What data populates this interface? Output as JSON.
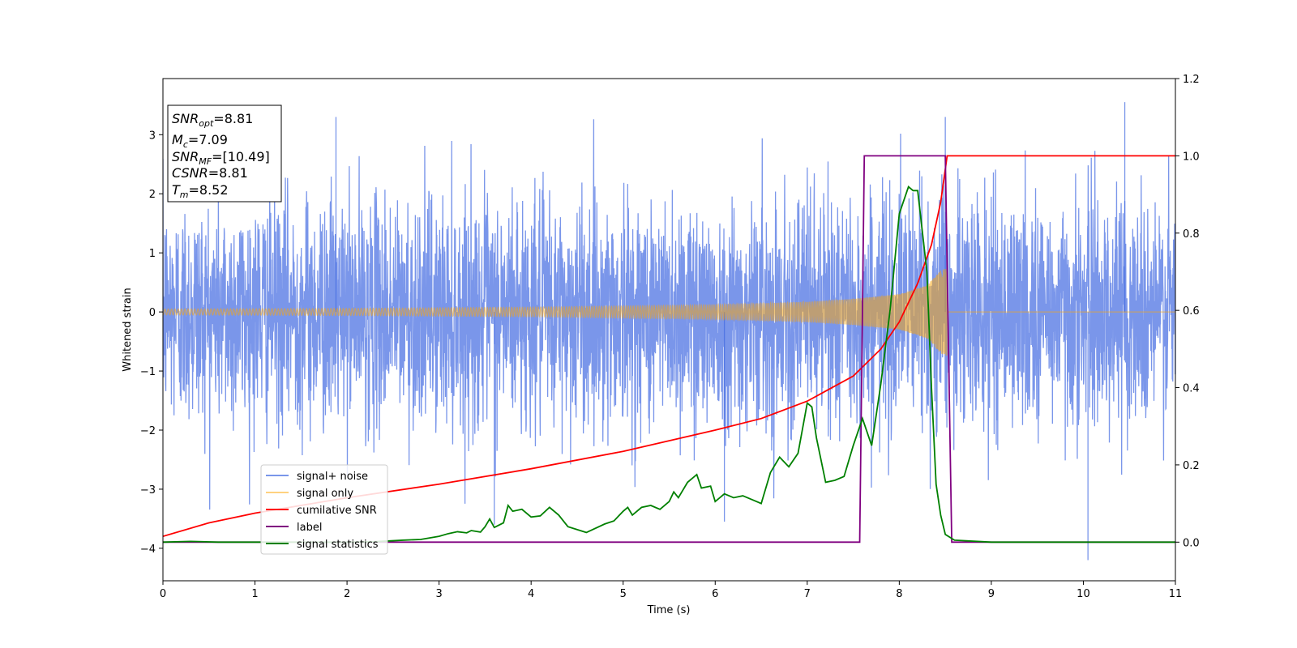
{
  "chart_data": {
    "type": "line",
    "title": "",
    "xlabel": "Time (s)",
    "ylabel_left": "Whitened strain",
    "ylabel_right": "",
    "xlim": [
      0,
      11
    ],
    "ylim_left": [
      -4.55,
      3.95
    ],
    "ylim_right": [
      -0.1,
      1.2
    ],
    "x_ticks": [
      "0",
      "1",
      "2",
      "3",
      "4",
      "5",
      "6",
      "7",
      "8",
      "9",
      "10",
      "11"
    ],
    "y_ticks_left": [
      "−4",
      "−3",
      "−2",
      "−1",
      "0",
      "1",
      "2",
      "3"
    ],
    "y_ticks_right": [
      "0.0",
      "0.2",
      "0.4",
      "0.6",
      "0.8",
      "1.0",
      "1.2"
    ],
    "grid": false,
    "legend_position": "lower-left",
    "legend": [
      "signal+ noise",
      "signal only",
      "cumilative SNR",
      "label",
      "signal statistics"
    ],
    "info_box": {
      "snr_opt": {
        "name": "SNR",
        "sub": "opt",
        "value": "=8.81"
      },
      "mc": {
        "name": "M",
        "sub": "c",
        "value": "=7.09"
      },
      "snr_mf": {
        "name": "SNR",
        "sub": "MF",
        "value": "=[10.49]"
      },
      "csnr": {
        "name": "CSNR",
        "value": "=8.81"
      },
      "tm": {
        "name": "T",
        "sub": "m",
        "value": "=8.52"
      }
    },
    "series": [
      {
        "name": "signal+ noise",
        "axis": "left",
        "color": "#4169e1",
        "opacity": 0.7,
        "description_range": [
          -4.2,
          3.55
        ],
        "notable_peaks": [
          [
            1.88,
            3.3
          ],
          [
            8.5,
            3.3
          ],
          [
            10.45,
            3.55
          ],
          [
            10.05,
            -4.2
          ],
          [
            3.6,
            -3.6
          ],
          [
            6.1,
            -3.55
          ]
        ]
      },
      {
        "name": "signal only",
        "axis": "left",
        "color": "#ffa500",
        "opacity": 0.5,
        "chirp_end": 8.52,
        "envelope": [
          [
            0,
            0.05
          ],
          [
            2,
            0.06
          ],
          [
            4,
            0.08
          ],
          [
            6,
            0.12
          ],
          [
            7,
            0.17
          ],
          [
            7.5,
            0.22
          ],
          [
            8,
            0.3
          ],
          [
            8.3,
            0.45
          ],
          [
            8.45,
            0.7
          ],
          [
            8.52,
            0.75
          ]
        ]
      },
      {
        "name": "cumilative SNR",
        "axis": "right",
        "color": "#ff0000",
        "points": [
          [
            0,
            0.015
          ],
          [
            0.5,
            0.05
          ],
          [
            1,
            0.075
          ],
          [
            2,
            0.115
          ],
          [
            3,
            0.15
          ],
          [
            4,
            0.19
          ],
          [
            5,
            0.235
          ],
          [
            6,
            0.29
          ],
          [
            6.5,
            0.32
          ],
          [
            7,
            0.365
          ],
          [
            7.5,
            0.43
          ],
          [
            7.8,
            0.5
          ],
          [
            8,
            0.57
          ],
          [
            8.2,
            0.67
          ],
          [
            8.35,
            0.77
          ],
          [
            8.45,
            0.88
          ],
          [
            8.52,
            1.0
          ],
          [
            11,
            1.0
          ]
        ]
      },
      {
        "name": "label",
        "axis": "right",
        "color": "#800080",
        "points": [
          [
            0,
            0
          ],
          [
            7.57,
            0
          ],
          [
            7.62,
            1.0
          ],
          [
            8.5,
            1.0
          ],
          [
            8.57,
            0
          ],
          [
            11,
            0
          ]
        ]
      },
      {
        "name": "signal statistics",
        "axis": "right",
        "color": "#008000",
        "points": [
          [
            0,
            0
          ],
          [
            0.3,
            0.002
          ],
          [
            0.6,
            0
          ],
          [
            1,
            0
          ],
          [
            1.5,
            0
          ],
          [
            2,
            0
          ],
          [
            2.3,
            0.001
          ],
          [
            2.6,
            0.005
          ],
          [
            2.8,
            0.007
          ],
          [
            3,
            0.015
          ],
          [
            3.1,
            0.022
          ],
          [
            3.2,
            0.027
          ],
          [
            3.3,
            0.024
          ],
          [
            3.35,
            0.03
          ],
          [
            3.45,
            0.026
          ],
          [
            3.5,
            0.04
          ],
          [
            3.55,
            0.06
          ],
          [
            3.6,
            0.038
          ],
          [
            3.7,
            0.05
          ],
          [
            3.75,
            0.095
          ],
          [
            3.8,
            0.08
          ],
          [
            3.9,
            0.085
          ],
          [
            4,
            0.065
          ],
          [
            4.1,
            0.068
          ],
          [
            4.2,
            0.09
          ],
          [
            4.3,
            0.07
          ],
          [
            4.4,
            0.04
          ],
          [
            4.6,
            0.025
          ],
          [
            4.8,
            0.047
          ],
          [
            4.9,
            0.055
          ],
          [
            5,
            0.08
          ],
          [
            5.05,
            0.09
          ],
          [
            5.1,
            0.07
          ],
          [
            5.2,
            0.09
          ],
          [
            5.3,
            0.095
          ],
          [
            5.4,
            0.085
          ],
          [
            5.5,
            0.105
          ],
          [
            5.55,
            0.13
          ],
          [
            5.6,
            0.115
          ],
          [
            5.7,
            0.155
          ],
          [
            5.8,
            0.175
          ],
          [
            5.85,
            0.14
          ],
          [
            5.95,
            0.145
          ],
          [
            6,
            0.105
          ],
          [
            6.1,
            0.125
          ],
          [
            6.2,
            0.115
          ],
          [
            6.3,
            0.12
          ],
          [
            6.4,
            0.11
          ],
          [
            6.5,
            0.1
          ],
          [
            6.6,
            0.18
          ],
          [
            6.7,
            0.22
          ],
          [
            6.8,
            0.195
          ],
          [
            6.9,
            0.23
          ],
          [
            7,
            0.36
          ],
          [
            7.05,
            0.35
          ],
          [
            7.1,
            0.27
          ],
          [
            7.2,
            0.155
          ],
          [
            7.3,
            0.16
          ],
          [
            7.4,
            0.17
          ],
          [
            7.5,
            0.25
          ],
          [
            7.6,
            0.32
          ],
          [
            7.7,
            0.25
          ],
          [
            7.8,
            0.41
          ],
          [
            7.9,
            0.6
          ],
          [
            8,
            0.85
          ],
          [
            8.1,
            0.92
          ],
          [
            8.15,
            0.91
          ],
          [
            8.2,
            0.91
          ],
          [
            8.3,
            0.7
          ],
          [
            8.35,
            0.4
          ],
          [
            8.4,
            0.15
          ],
          [
            8.45,
            0.07
          ],
          [
            8.5,
            0.02
          ],
          [
            8.6,
            0.005
          ],
          [
            9,
            0
          ],
          [
            10,
            0
          ],
          [
            11,
            0
          ]
        ]
      }
    ]
  }
}
